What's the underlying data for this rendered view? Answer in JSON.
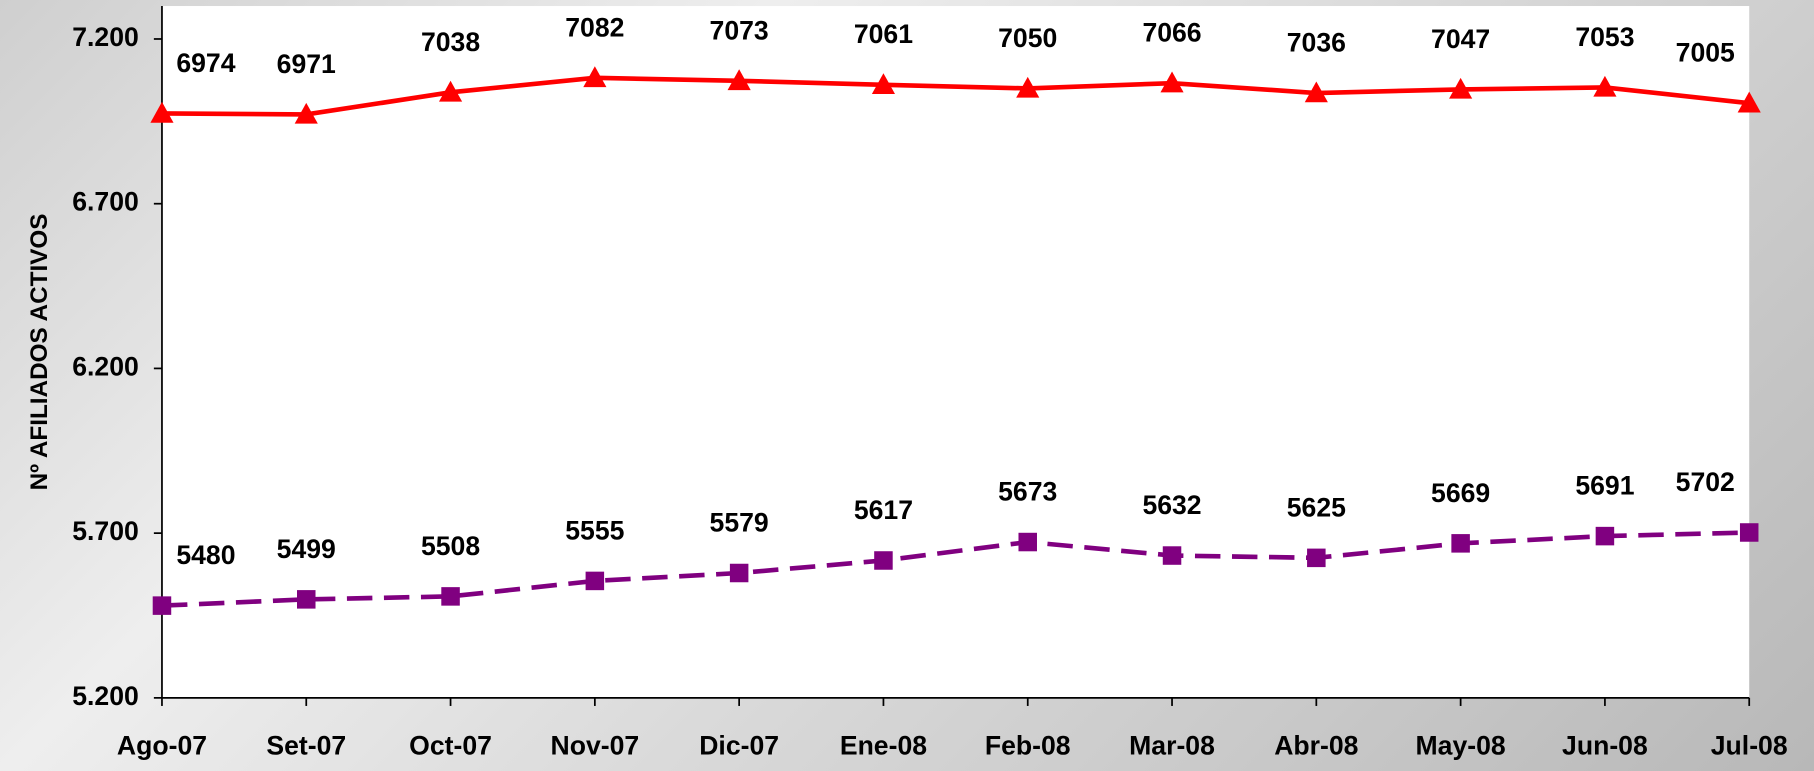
{
  "chart_data": {
    "type": "line",
    "y_axis_label": "Nº AFILIADOS ACTIVOS",
    "categories": [
      "Ago-07",
      "Set-07",
      "Oct-07",
      "Nov-07",
      "Dic-07",
      "Ene-08",
      "Feb-08",
      "Mar-08",
      "Abr-08",
      "May-08",
      "Jun-08",
      "Jul-08"
    ],
    "series": [
      {
        "color": "#ff0000",
        "marker": "triangle",
        "line_style": "solid",
        "values": [
          6974,
          6971,
          7038,
          7082,
          7073,
          7061,
          7050,
          7066,
          7036,
          7047,
          7053,
          7005
        ]
      },
      {
        "color": "#800080",
        "marker": "square",
        "line_style": "dashed",
        "values": [
          5480,
          5499,
          5508,
          5555,
          5579,
          5617,
          5673,
          5632,
          5625,
          5669,
          5691,
          5702
        ]
      }
    ],
    "ylim": [
      5200,
      7300
    ],
    "yticks": [
      {
        "value": 5200,
        "label": "5.200"
      },
      {
        "value": 5700,
        "label": "5.700"
      },
      {
        "value": 6200,
        "label": "6.200"
      },
      {
        "value": 6700,
        "label": "6.700"
      },
      {
        "value": 7200,
        "label": "7.200"
      }
    ],
    "grid": false
  }
}
